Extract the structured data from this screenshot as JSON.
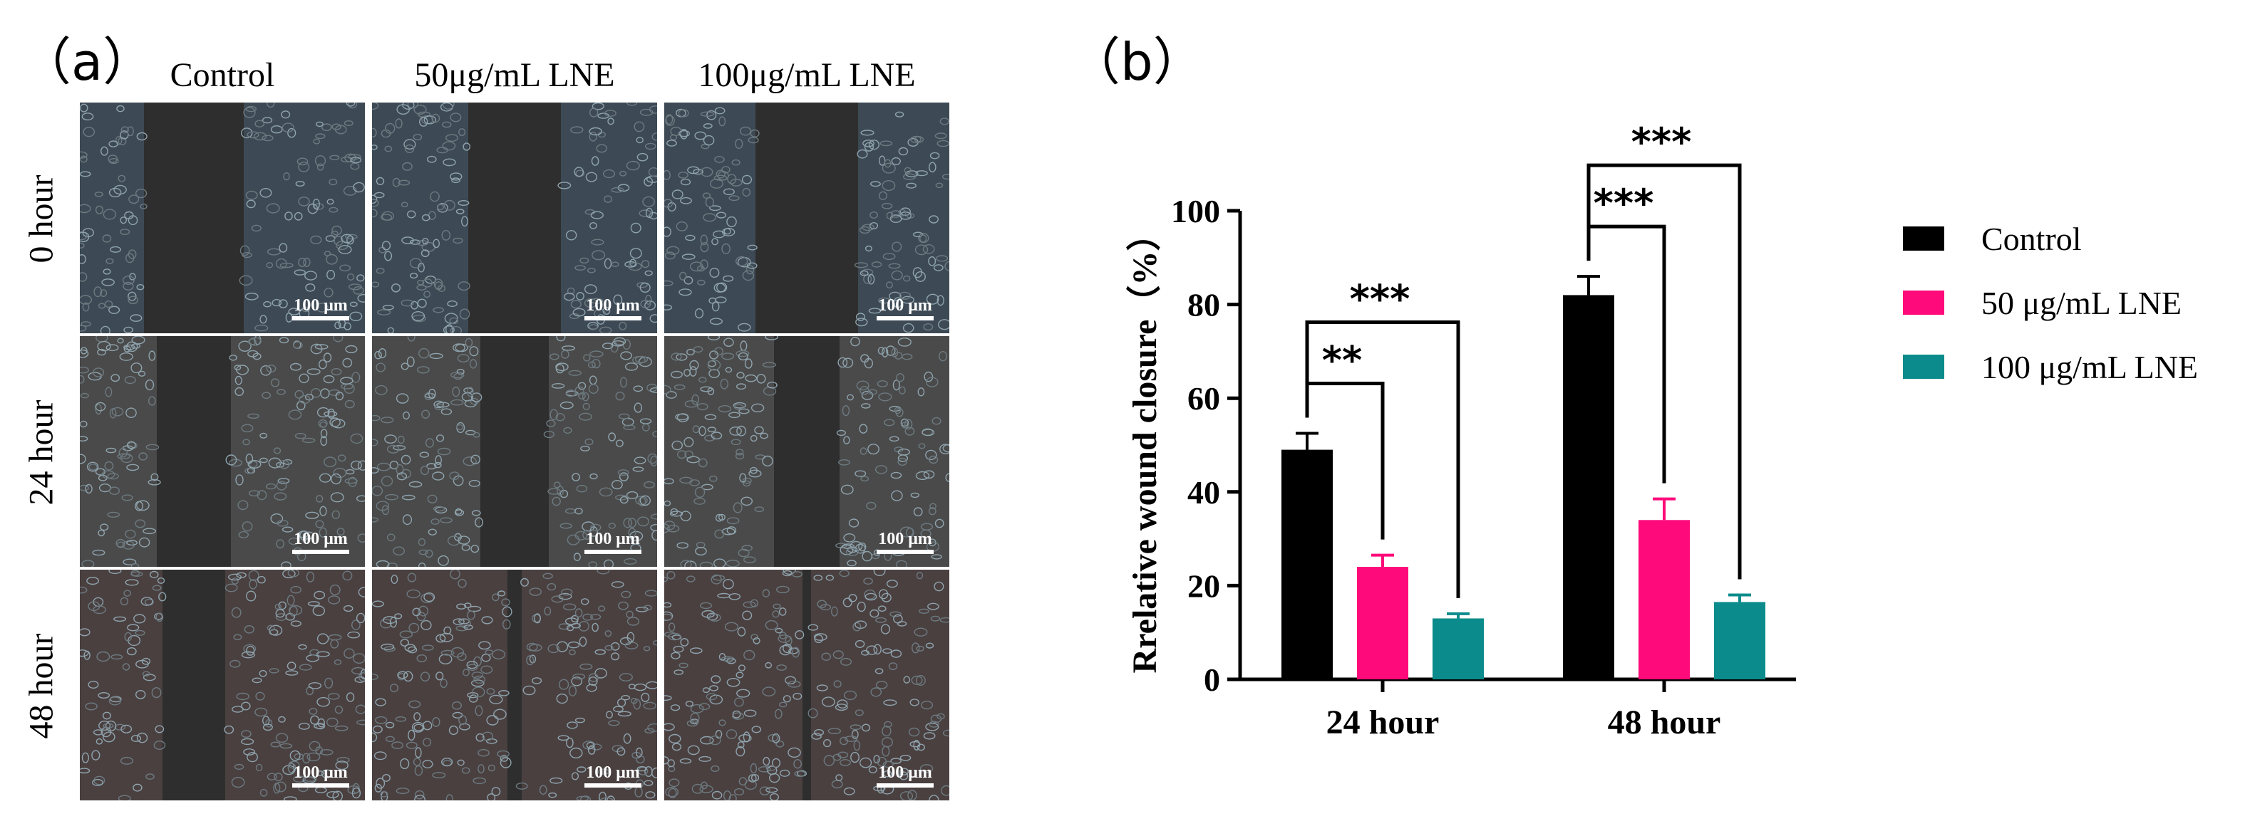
{
  "panel_a": {
    "label": "（a）",
    "columns": [
      "Control",
      "50μg/mL LNE",
      "100μg/mL LNE"
    ],
    "rows": [
      "0 hour",
      "24 hour",
      "48 hour"
    ],
    "scale_bar": "100 μm"
  },
  "panel_b": {
    "label": "（b）"
  },
  "chart_data": {
    "type": "bar",
    "categories": [
      "24 hour",
      "48 hour"
    ],
    "series": [
      {
        "name": "Control",
        "color": "#000000",
        "values": [
          49,
          82
        ],
        "errors": [
          3.5,
          4
        ]
      },
      {
        "name": "50 μg/mL LNE",
        "color": "#ff0a7a",
        "values": [
          24,
          34
        ],
        "errors": [
          2.5,
          4.5
        ]
      },
      {
        "name": "100 μg/mL LNE",
        "color": "#0b8b8b",
        "values": [
          13,
          16.5
        ],
        "errors": [
          1,
          1.5
        ]
      }
    ],
    "ylabel": "Rrelative wound closure（%）",
    "xlabel": "",
    "ylim": [
      0,
      100
    ],
    "yticks": [
      0,
      20,
      40,
      60,
      80,
      100
    ],
    "legend_position": "right",
    "significance": [
      {
        "category": "24 hour",
        "from": "Control",
        "to": "50 μg/mL LNE",
        "label": "**"
      },
      {
        "category": "24 hour",
        "from": "Control",
        "to": "100 μg/mL LNE",
        "label": "***"
      },
      {
        "category": "48 hour",
        "from": "Control",
        "to": "50 μg/mL LNE",
        "label": "***"
      },
      {
        "category": "48 hour",
        "from": "Control",
        "to": "100 μg/mL LNE",
        "label": "***"
      }
    ]
  }
}
